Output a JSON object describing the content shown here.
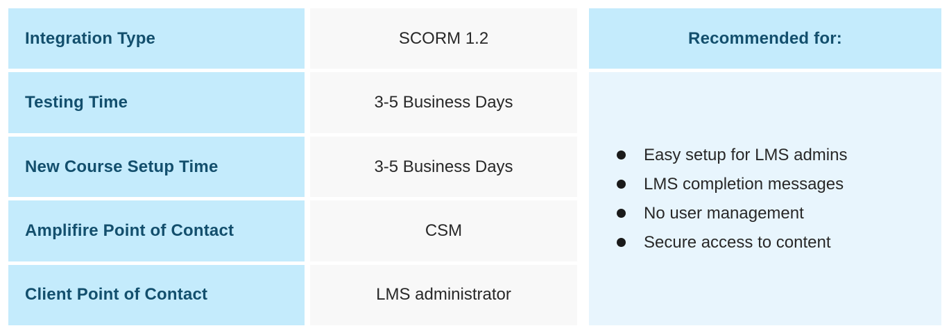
{
  "table": {
    "rows": [
      {
        "label": "Integration Type",
        "value": "SCORM 1.2"
      },
      {
        "label": "Testing Time",
        "value": "3-5 Business Days"
      },
      {
        "label": "New Course Setup Time",
        "value": "3-5 Business Days"
      },
      {
        "label": "Amplifire Point of Contact",
        "value": "CSM"
      },
      {
        "label": "Client Point of Contact",
        "value": "LMS administrator"
      }
    ],
    "recommended": {
      "header": "Recommended for:",
      "items": [
        "Easy setup for LMS admins",
        "LMS completion messages",
        "No user management",
        "Secure access to content"
      ]
    }
  },
  "colors": {
    "header_blue": "#c4ebfc",
    "body_blue": "#e8f5fd",
    "cell_gray": "#f8f8f8",
    "teal_text": "#134f6d",
    "body_text": "#282828",
    "bullet": "#1a1a1a"
  }
}
